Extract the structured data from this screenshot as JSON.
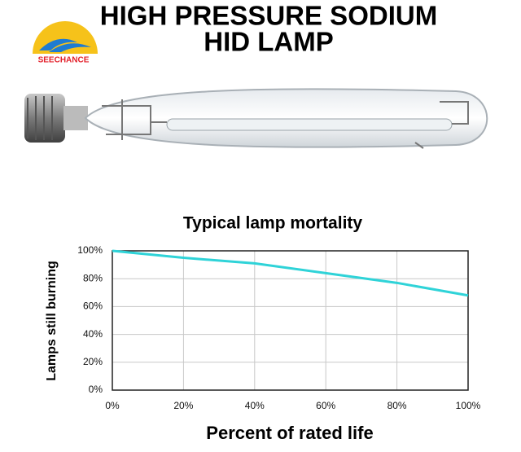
{
  "header": {
    "brand": "SEECHANCE",
    "title_lines": [
      "HIGH PRESSURE SODIUM",
      "HID LAMP"
    ]
  },
  "chart_data": {
    "type": "line",
    "title": "Typical lamp mortality",
    "x_label": "Percent of rated life",
    "y_label": "Lamps still burning",
    "x": [
      0,
      20,
      40,
      60,
      80,
      100
    ],
    "series": [
      {
        "name": "Lamps still burning",
        "color": "#2fd3d8",
        "values": [
          100,
          95,
          91,
          84,
          77,
          68
        ]
      }
    ],
    "xlim": [
      0,
      100
    ],
    "ylim": [
      0,
      100
    ],
    "xticks": [
      {
        "value": 0,
        "label": "0%"
      },
      {
        "value": 20,
        "label": "20%"
      },
      {
        "value": 40,
        "label": "40%"
      },
      {
        "value": 60,
        "label": "60%"
      },
      {
        "value": 80,
        "label": "80%"
      },
      {
        "value": 100,
        "label": "100%"
      }
    ],
    "yticks": [
      {
        "value": 0,
        "label": "0%"
      },
      {
        "value": 20,
        "label": "20%"
      },
      {
        "value": 40,
        "label": "40%"
      },
      {
        "value": 60,
        "label": "60%"
      },
      {
        "value": 80,
        "label": "80%"
      },
      {
        "value": 100,
        "label": "100%"
      }
    ],
    "grid": true
  }
}
